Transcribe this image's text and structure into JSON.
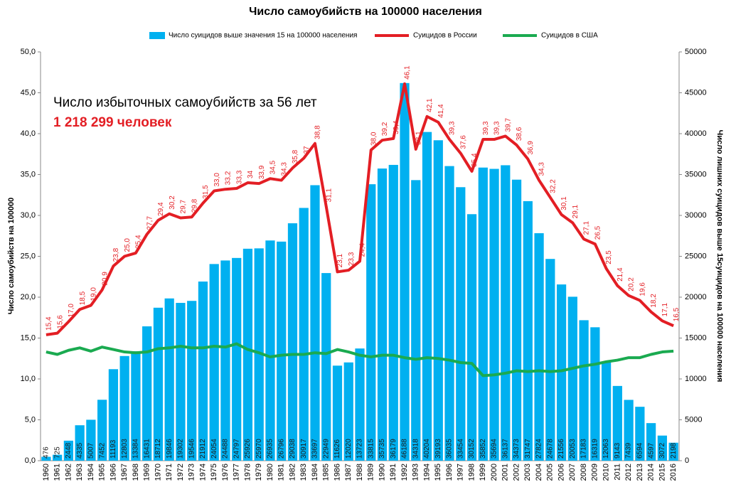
{
  "chart_data": {
    "type": "bar-line",
    "title": "Число самоубийств на 100000 населения",
    "annotations": [
      "Число избыточных самоубийств за 56 лет",
      "1 218 299 человек"
    ],
    "ylabel": "Число самоубийств на 100000",
    "y2label": "Число лишних суицидов выше 15суицидов на 100000 населения",
    "categories": [
      "1960",
      "1961",
      "1962",
      "1963",
      "1964",
      "1965",
      "1966",
      "1967",
      "1968",
      "1969",
      "1970",
      "1971",
      "1972",
      "1973",
      "1974",
      "1975",
      "1976",
      "1977",
      "1978",
      "1979",
      "1980",
      "1981",
      "1982",
      "1983",
      "1984",
      "1985",
      "1986",
      "1987",
      "1988",
      "1989",
      "1990",
      "1991",
      "1992",
      "1993",
      "1994",
      "1995",
      "1996",
      "1997",
      "1998",
      "1999",
      "2000",
      "2001",
      "2002",
      "2003",
      "2004",
      "2005",
      "2006",
      "2007",
      "2008",
      "2009",
      "2010",
      "2011",
      "2012",
      "2013",
      "2014",
      "2015",
      "2016"
    ],
    "ylim": [
      0,
      50
    ],
    "yticks": [
      {
        "value": 0,
        "label": "0,0"
      },
      {
        "value": 5,
        "label": "5,0"
      },
      {
        "value": 10,
        "label": "10,0"
      },
      {
        "value": 15,
        "label": "15,0"
      },
      {
        "value": 20,
        "label": "20,0"
      },
      {
        "value": 25,
        "label": "25,0"
      },
      {
        "value": 30,
        "label": "30,0"
      },
      {
        "value": 35,
        "label": "35,0"
      },
      {
        "value": 40,
        "label": "40,0"
      },
      {
        "value": 45,
        "label": "45,0"
      },
      {
        "value": 50,
        "label": "50,0"
      }
    ],
    "y2lim": [
      0,
      50000
    ],
    "y2ticks": [
      0,
      5000,
      10000,
      15000,
      20000,
      25000,
      30000,
      35000,
      40000,
      45000,
      50000
    ],
    "legend": "top",
    "series": [
      {
        "name": "Число суицидов выше значения 15 на 100000 населения",
        "type": "bar",
        "axis": "y2",
        "color": "#00b0f0",
        "values": [
          476,
          725,
          2448,
          4335,
          5007,
          7452,
          11193,
          12803,
          13384,
          16431,
          18712,
          19846,
          19302,
          19546,
          21912,
          24054,
          24488,
          24797,
          25926,
          25970,
          26935,
          26796,
          29038,
          30917,
          33697,
          22949,
          11626,
          12020,
          13723,
          33815,
          35735,
          36179,
          46188,
          34318,
          40204,
          39193,
          36035,
          33454,
          30152,
          35852,
          35694,
          36137,
          34373,
          31747,
          27824,
          24678,
          21556,
          20053,
          17183,
          16319,
          12063,
          9143,
          7439,
          6594,
          4597,
          3072,
          2198
        ]
      },
      {
        "name": "Суицидов в России",
        "type": "line",
        "color": "#e31e24",
        "values": [
          15.4,
          15.6,
          17.0,
          18.5,
          19.0,
          20.9,
          23.8,
          25.0,
          25.4,
          27.7,
          29.4,
          30.2,
          29.7,
          29.8,
          31.5,
          33.0,
          33.2,
          33.3,
          34,
          33.9,
          34.5,
          34.3,
          35.8,
          37,
          38.8,
          31.1,
          23.1,
          23.3,
          24.4,
          38.0,
          39.2,
          39.4,
          46.1,
          38.1,
          42.1,
          41.4,
          39.3,
          37.6,
          35.4,
          39.3,
          39.3,
          39.7,
          38.6,
          36.9,
          34.3,
          32.2,
          30.1,
          29.1,
          27.1,
          26.5,
          23.5,
          21.4,
          20.2,
          19.6,
          18.2,
          17.1,
          16.5
        ],
        "value_labels": [
          "15,4",
          "15,6",
          "17,0",
          "18,5",
          "19,0",
          "20,9",
          "23,8",
          "25,0",
          "25,4",
          "27,7",
          "29,4",
          "30,2",
          "29,7",
          "29,8",
          "31,5",
          "33,0",
          "33,2",
          "33,3",
          "34",
          "33,9",
          "34,5",
          "34,3",
          "35,8",
          "37",
          "38,8",
          "31,1",
          "23,1",
          "23,3",
          "24,4",
          "38,0",
          "39,2",
          "39,4",
          "46,1",
          "38,1",
          "42,1",
          "41,4",
          "39,3",
          "37,6",
          "35,4",
          "39,3",
          "39,3",
          "39,7",
          "38,6",
          "36,9",
          "34,3",
          "32,2",
          "30,1",
          "29,1",
          "27,1",
          "26,5",
          "23,5",
          "21,4",
          "20,2",
          "19,6",
          "18,2",
          "17,1",
          "16,5"
        ]
      },
      {
        "name": "Суицидов в США",
        "type": "line",
        "color": "#1aaa50",
        "values": [
          13.3,
          13.0,
          13.5,
          13.8,
          13.4,
          13.9,
          13.6,
          13.3,
          13.2,
          13.3,
          13.7,
          13.8,
          14.0,
          13.8,
          13.8,
          14.0,
          13.9,
          14.3,
          13.6,
          13.2,
          12.7,
          12.9,
          13.0,
          13.0,
          13.2,
          13.1,
          13.6,
          13.3,
          12.9,
          12.7,
          12.9,
          12.9,
          12.6,
          12.4,
          12.6,
          12.5,
          12.3,
          12.0,
          11.9,
          10.4,
          10.5,
          10.7,
          11.0,
          10.9,
          11.0,
          10.9,
          11.0,
          11.3,
          11.6,
          11.8,
          12.1,
          12.3,
          12.6,
          12.6,
          13.0,
          13.3,
          13.4
        ]
      }
    ]
  }
}
